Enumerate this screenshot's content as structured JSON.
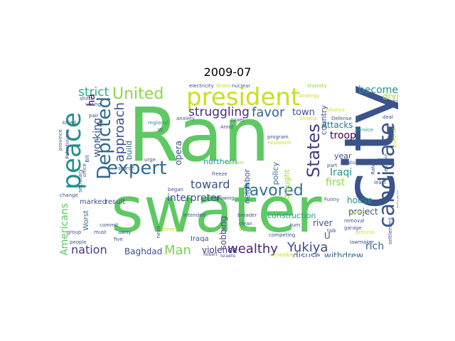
{
  "title": "2009-07",
  "words": [
    {
      "text": "Ran",
      "color": "#5ec962"
    },
    {
      "text": "swater",
      "color": "#5ec962"
    },
    {
      "text": "city",
      "color": "#3b528b"
    },
    {
      "text": "president",
      "color": "#c8e020"
    },
    {
      "text": "peace",
      "color": "#21918c"
    },
    {
      "text": "candidate",
      "color": "#3b528b"
    },
    {
      "text": "Depicted",
      "color": "#31688e"
    },
    {
      "text": "expert",
      "color": "#31688e"
    },
    {
      "text": "favored",
      "color": "#2c728e"
    },
    {
      "text": "United",
      "color": "#8fd744"
    },
    {
      "text": "States",
      "color": "#443a83"
    },
    {
      "text": "approach",
      "color": "#3b528b"
    },
    {
      "text": "struggling",
      "color": "#472d7b"
    },
    {
      "text": "favor",
      "color": "#31688e"
    },
    {
      "text": "town",
      "color": "#3b528b"
    },
    {
      "text": "toward",
      "color": "#3b528b"
    },
    {
      "text": "wealthy",
      "color": "#482475"
    },
    {
      "text": "Yukiya",
      "color": "#3e4989"
    },
    {
      "text": "Man",
      "color": "#7ad151"
    },
    {
      "text": "nation",
      "color": "#443a83"
    },
    {
      "text": "strict",
      "color": "#28ae80"
    },
    {
      "text": "become",
      "color": "#21918c"
    },
    {
      "text": "drying",
      "color": "#a0da39"
    },
    {
      "text": "working",
      "color": "#3b528b"
    },
    {
      "text": "interpreter",
      "color": "#3b528b"
    },
    {
      "text": "Americans",
      "color": "#5ec962"
    },
    {
      "text": "opera",
      "color": "#3e4989"
    },
    {
      "text": "Attacks",
      "color": "#2a788e"
    },
    {
      "text": "troop",
      "color": "#440154"
    },
    {
      "text": "Iraqi",
      "color": "#21918c"
    },
    {
      "text": "first",
      "color": "#8fd744"
    },
    {
      "text": "rich",
      "color": "#31688e"
    },
    {
      "text": "violence",
      "color": "#472d7b"
    },
    {
      "text": "Baghdad",
      "color": "#3b528b"
    },
    {
      "text": "disuse",
      "color": "#3b528b"
    },
    {
      "text": "withdrew",
      "color": "#31688e"
    },
    {
      "text": "sobbing",
      "color": "#3e4989"
    },
    {
      "text": "construction",
      "color": "#1fa187"
    },
    {
      "text": "house",
      "color": "#21918c"
    },
    {
      "text": "project",
      "color": "#3b528b"
    },
    {
      "text": "river",
      "color": "#3b528b"
    },
    {
      "text": "policy",
      "color": "#31688e"
    },
    {
      "text": "neighbor",
      "color": "#3b528b"
    },
    {
      "text": "country",
      "color": "#3b528b"
    },
    {
      "text": "drought",
      "color": "#a0da39"
    },
    {
      "text": "year",
      "color": "#3b528b"
    },
    {
      "text": "northern",
      "color": "#21918c"
    },
    {
      "text": "build",
      "color": "#31688e"
    },
    {
      "text": "marked",
      "color": "#3b528b"
    },
    {
      "text": "result",
      "color": "#3b528b"
    },
    {
      "text": "Worst",
      "color": "#31688e"
    },
    {
      "text": "ha",
      "color": "#440154"
    },
    {
      "text": "Iraqa",
      "color": "#3b528b"
    },
    {
      "text": "U",
      "color": "#3b528b"
    },
    {
      "text": "electricity",
      "color": "#3b528b"
    },
    {
      "text": "Grabs",
      "color": "#c8e020"
    },
    {
      "text": "nuclear",
      "color": "#31688e"
    },
    {
      "text": "stability",
      "color": "#8fd744"
    },
    {
      "text": "shifts",
      "color": "#3b528b"
    },
    {
      "text": "voting",
      "color": "#3b528b"
    },
    {
      "text": "pair",
      "color": "#3b528b"
    },
    {
      "text": "killed",
      "color": "#3b528b"
    },
    {
      "text": "regional",
      "color": "#21918c"
    },
    {
      "text": "Amid",
      "color": "#3b528b"
    },
    {
      "text": "Israel",
      "color": "#3b528b"
    },
    {
      "text": "anxiety",
      "color": "#3b528b"
    },
    {
      "text": "strategy",
      "color": "#c8e020"
    },
    {
      "text": "alliance",
      "color": "#c8e020"
    },
    {
      "text": "gripped",
      "color": "#3b528b"
    },
    {
      "text": "deal",
      "color": "#3b528b"
    },
    {
      "text": "Drama",
      "color": "#c8e020"
    },
    {
      "text": "service",
      "color": "#21918c"
    },
    {
      "text": "Defense",
      "color": "#3b528b"
    },
    {
      "text": "program",
      "color": "#3b528b"
    },
    {
      "text": "explosion",
      "color": "#c8e020"
    },
    {
      "text": "Saturday",
      "color": "#3b528b"
    },
    {
      "text": "explain",
      "color": "#3b528b"
    },
    {
      "text": "freeze",
      "color": "#3b528b"
    },
    {
      "text": "remain",
      "color": "#a0da39"
    },
    {
      "text": "urge",
      "color": "#3b528b"
    },
    {
      "text": "scarce",
      "color": "#3b528b"
    },
    {
      "text": "began",
      "color": "#3b528b"
    },
    {
      "text": "part",
      "color": "#3b528b"
    },
    {
      "text": "Islamic",
      "color": "#3b528b"
    },
    {
      "text": "province",
      "color": "#3b528b"
    },
    {
      "text": "Palestinians",
      "color": "#3b528b"
    },
    {
      "text": "change",
      "color": "#3b528b"
    },
    {
      "text": "office",
      "color": "#3b528b"
    },
    {
      "text": "secretary",
      "color": "#3b528b"
    },
    {
      "text": "commit",
      "color": "#3b528b"
    },
    {
      "text": "away",
      "color": "#3b528b"
    },
    {
      "text": "growing",
      "color": "#3b528b"
    },
    {
      "text": "turn",
      "color": "#3b528b"
    },
    {
      "text": "Funny",
      "color": "#3b528b"
    },
    {
      "text": "intended",
      "color": "#3b528b"
    },
    {
      "text": "broader",
      "color": "#3b528b"
    },
    {
      "text": "clean",
      "color": "#3b528b"
    },
    {
      "text": "Syria",
      "color": "#a0da39"
    },
    {
      "text": "injured",
      "color": "#c8e020"
    },
    {
      "text": "removal",
      "color": "#3b528b"
    },
    {
      "text": "garage",
      "color": "#3b528b"
    },
    {
      "text": "talk",
      "color": "#3b528b"
    },
    {
      "text": "process",
      "color": "#c8e020"
    },
    {
      "text": "group",
      "color": "#3b528b"
    },
    {
      "text": "must",
      "color": "#3b528b"
    },
    {
      "text": "five",
      "color": "#3b528b"
    },
    {
      "text": "people",
      "color": "#3b528b"
    },
    {
      "text": "Robert",
      "color": "#3b528b"
    },
    {
      "text": "others",
      "color": "#c8e020"
    },
    {
      "text": "need",
      "color": "#3b528b"
    },
    {
      "text": "competing",
      "color": "#3b528b"
    },
    {
      "text": "incredible",
      "color": "#c8e020"
    },
    {
      "text": "settlement",
      "color": "#3b528b"
    },
    {
      "text": "lawmaker",
      "color": "#3b528b"
    },
    {
      "text": "Israelis",
      "color": "#3b528b"
    },
    {
      "text": "Rates",
      "color": "#3b528b"
    },
    {
      "text": "Bill",
      "color": "#3b528b"
    },
    {
      "text": "W",
      "color": "#3b528b"
    },
    {
      "text": "least",
      "color": "#3b528b"
    },
    {
      "text": "political",
      "color": "#c8e020"
    }
  ]
}
